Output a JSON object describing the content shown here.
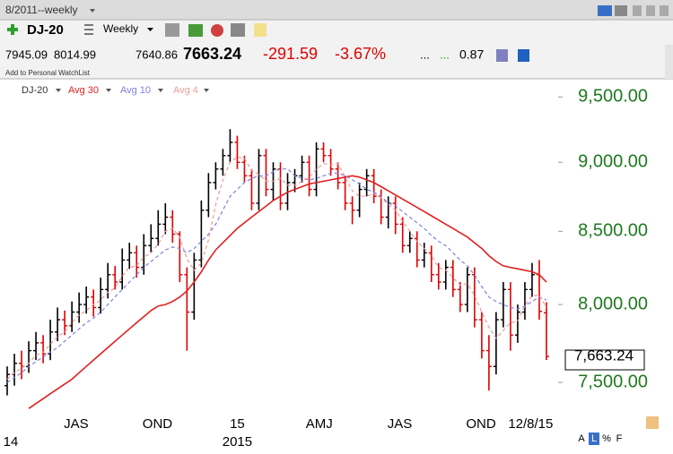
{
  "toolbar": {
    "period": "8/2011--weekly",
    "symbol": "DJ-20",
    "interval": "Weekly",
    "open": "7945.09",
    "high": "8014.99",
    "low": "7640.86",
    "last": "7663.24",
    "change": "-291.59",
    "change_pct": "-3.67%",
    "dots1": "...",
    "dots2": "...",
    "ratio": "0.87",
    "watchlist": "Add to Personal WatchList"
  },
  "chart_data": {
    "type": "ohlc",
    "name": "DJ-20",
    "log_scale": true,
    "up_color": "#000000",
    "down_color": "#e00000",
    "axis_label_color": "#1f7a1f",
    "open": [
      7480,
      7550,
      7620,
      7600,
      7700,
      7750,
      7680,
      7820,
      7900,
      7860,
      7950,
      8000,
      8050,
      7980,
      8100,
      8200,
      8150,
      8300,
      8350,
      8250,
      8400,
      8450,
      8550,
      8600,
      8480,
      8200,
      7950,
      8300,
      8650,
      8850,
      8950,
      9050,
      9150,
      9000,
      8900,
      8700,
      9050,
      8800,
      8950,
      8700,
      8850,
      8900,
      9000,
      8800,
      9100,
      9050,
      8950,
      8850,
      8700,
      8650,
      8800,
      8900,
      8750,
      8600,
      8700,
      8550,
      8400,
      8450,
      8300,
      8350,
      8200,
      8150,
      8250,
      8100,
      8000,
      8200,
      7900,
      7700,
      7600,
      7900,
      8100,
      7800,
      7950,
      8100,
      8200,
      7945.09
    ],
    "high": [
      7600,
      7680,
      7700,
      7760,
      7820,
      7800,
      7900,
      7980,
      7960,
      8020,
      8080,
      8120,
      8100,
      8180,
      8280,
      8260,
      8380,
      8420,
      8400,
      8480,
      8550,
      8650,
      8700,
      8650,
      8500,
      8250,
      8350,
      8720,
      8920,
      9000,
      9100,
      9250,
      9200,
      9050,
      8950,
      9100,
      9100,
      9000,
      9000,
      8920,
      8950,
      9050,
      9050,
      9150,
      9150,
      9100,
      9000,
      8900,
      8750,
      8850,
      8950,
      8950,
      8800,
      8750,
      8750,
      8600,
      8500,
      8500,
      8420,
      8400,
      8280,
      8300,
      8300,
      8150,
      8250,
      8250,
      7950,
      7800,
      7950,
      8150,
      8150,
      8000,
      8150,
      8280,
      8300,
      8014.99
    ],
    "low": [
      7420,
      7480,
      7520,
      7560,
      7640,
      7620,
      7640,
      7760,
      7800,
      7820,
      7880,
      7940,
      7920,
      7940,
      8040,
      8100,
      8100,
      8240,
      8180,
      8200,
      8350,
      8400,
      8480,
      8420,
      8150,
      7700,
      7900,
      8250,
      8600,
      8800,
      8900,
      9000,
      8950,
      8850,
      8650,
      8650,
      8750,
      8720,
      8650,
      8650,
      8780,
      8850,
      8750,
      8750,
      9000,
      8900,
      8800,
      8650,
      8550,
      8600,
      8750,
      8700,
      8550,
      8520,
      8480,
      8350,
      8350,
      8250,
      8250,
      8150,
      8100,
      8100,
      8050,
      7950,
      7950,
      7850,
      7650,
      7450,
      7550,
      7850,
      7700,
      7750,
      7900,
      8050,
      7900,
      7640.86
    ],
    "close": [
      7550,
      7620,
      7600,
      7700,
      7750,
      7680,
      7820,
      7900,
      7860,
      7950,
      8000,
      8050,
      7980,
      8100,
      8200,
      8150,
      8300,
      8350,
      8250,
      8400,
      8450,
      8550,
      8600,
      8480,
      8200,
      7950,
      8300,
      8650,
      8850,
      8950,
      9050,
      9150,
      9000,
      8900,
      8700,
      9050,
      8800,
      8950,
      8700,
      8850,
      8900,
      9000,
      8800,
      9100,
      9050,
      8950,
      8850,
      8700,
      8650,
      8800,
      8900,
      8750,
      8600,
      8700,
      8550,
      8400,
      8450,
      8300,
      8350,
      8200,
      8150,
      8250,
      8100,
      8000,
      8200,
      7900,
      7700,
      7600,
      7900,
      8100,
      7800,
      7950,
      8100,
      8200,
      7954.83,
      7663.24
    ],
    "series": [
      {
        "name": "Avg 30",
        "color": "#e02020",
        "dashed": false,
        "values": [
          null,
          null,
          null,
          7340,
          7370,
          7400,
          7430,
          7460,
          7490,
          7520,
          7560,
          7600,
          7640,
          7680,
          7720,
          7760,
          7800,
          7840,
          7880,
          7920,
          7960,
          7990,
          8000,
          8020,
          8050,
          8090,
          8150,
          8220,
          8300,
          8370,
          8420,
          8470,
          8520,
          8560,
          8600,
          8640,
          8680,
          8720,
          8750,
          8780,
          8800,
          8820,
          8840,
          8850,
          8860,
          8870,
          8880,
          8890,
          8900,
          8890,
          8870,
          8850,
          8820,
          8790,
          8760,
          8730,
          8700,
          8670,
          8640,
          8610,
          8580,
          8550,
          8520,
          8490,
          8460,
          8420,
          8380,
          8330,
          8290,
          8260,
          8250,
          8240,
          8230,
          8220,
          8200,
          8150
        ]
      },
      {
        "name": "Avg 10",
        "color": "#7f7fe0",
        "dashed": true,
        "values": [
          7500,
          7530,
          7560,
          7600,
          7630,
          7660,
          7690,
          7720,
          7760,
          7800,
          7840,
          7880,
          7910,
          7950,
          8000,
          8050,
          8100,
          8150,
          8200,
          8250,
          8290,
          8330,
          8370,
          8390,
          8380,
          8350,
          8380,
          8430,
          8480,
          8550,
          8650,
          8750,
          8800,
          8850,
          8880,
          8900,
          8900,
          8930,
          8950,
          8950,
          8900,
          8880,
          8870,
          8880,
          8900,
          8920,
          8920,
          8900,
          8870,
          8840,
          8800,
          8780,
          8750,
          8700,
          8680,
          8640,
          8600,
          8560,
          8520,
          8470,
          8430,
          8400,
          8350,
          8300,
          8260,
          8200,
          8120,
          8050,
          8020,
          8000,
          7980,
          7970,
          7990,
          8020,
          8050,
          8030
        ]
      },
      {
        "name": "Avg 4",
        "color": "#ee9a9a",
        "dashed": true,
        "values": [
          7520,
          7560,
          7590,
          7620,
          7670,
          7690,
          7740,
          7790,
          7820,
          7880,
          7930,
          7960,
          8000,
          8030,
          8080,
          8110,
          8190,
          8250,
          8260,
          8320,
          8350,
          8410,
          8500,
          8520,
          8460,
          8310,
          8230,
          8280,
          8440,
          8690,
          8870,
          9000,
          9040,
          9030,
          8940,
          8910,
          8860,
          8860,
          8880,
          8830,
          8830,
          8860,
          8890,
          8950,
          8990,
          8980,
          8990,
          8890,
          8790,
          8750,
          8750,
          8770,
          8740,
          8690,
          8650,
          8570,
          8500,
          8430,
          8380,
          8330,
          8250,
          8230,
          8180,
          8130,
          8140,
          8060,
          7950,
          7850,
          7780,
          7830,
          7880,
          7890,
          7990,
          8060,
          8060,
          7980
        ]
      }
    ],
    "ylim": [
      7330,
      9630
    ],
    "yticks": [
      {
        "value": 9500,
        "label": "9,500.00"
      },
      {
        "value": 9000,
        "label": "9,000.00"
      },
      {
        "value": 8500,
        "label": "8,500.00"
      },
      {
        "value": 8000,
        "label": "8,000.00"
      },
      {
        "value": 7500,
        "label": "7,500.00"
      }
    ],
    "xlim": [
      -1,
      77
    ],
    "xticks": [
      {
        "value": 9.6,
        "label": "JAS"
      },
      {
        "value": 20.9,
        "label": "OND"
      },
      {
        "value": 32,
        "label": "15"
      },
      {
        "value": 43.4,
        "label": "AMJ"
      },
      {
        "value": 54.6,
        "label": "JAS"
      },
      {
        "value": 65.9,
        "label": "OND"
      },
      {
        "value": 72.8,
        "label": "12/8/15"
      }
    ],
    "xticks2": [
      {
        "value": 0.5,
        "label": "14"
      },
      {
        "value": 32,
        "label": "2015"
      }
    ],
    "price_marker": {
      "value": 7663.24,
      "label": "7,663.24"
    },
    "scale_buttons": [
      "A",
      "L",
      "%",
      "F"
    ]
  }
}
